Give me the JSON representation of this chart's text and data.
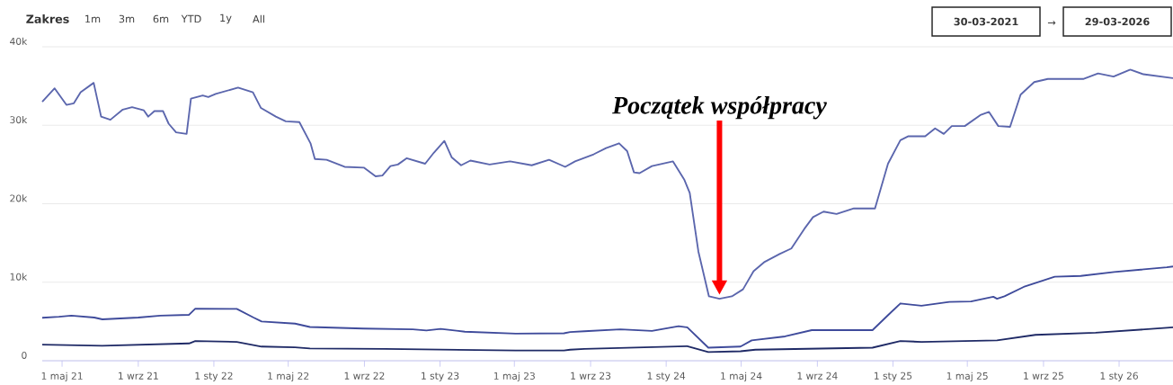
{
  "chart_data": {
    "type": "line",
    "xlim": [
      "2021-03-30",
      "2026-03-29"
    ],
    "ylim": [
      0,
      40000
    ],
    "xticks": [
      {
        "value": "2021-05-01",
        "label": "1 maj 21"
      },
      {
        "value": "2021-09-01",
        "label": "1 wrz 21"
      },
      {
        "value": "2022-01-01",
        "label": "1 sty 22"
      },
      {
        "value": "2022-05-01",
        "label": "1 maj 22"
      },
      {
        "value": "2022-09-01",
        "label": "1 wrz 22"
      },
      {
        "value": "2023-01-01",
        "label": "1 sty 23"
      },
      {
        "value": "2023-05-01",
        "label": "1 maj 23"
      },
      {
        "value": "2023-09-01",
        "label": "1 wrz 23"
      },
      {
        "value": "2024-01-01",
        "label": "1 sty 24"
      },
      {
        "value": "2024-05-01",
        "label": "1 maj 24"
      },
      {
        "value": "2024-09-01",
        "label": "1 wrz 24"
      },
      {
        "value": "2025-01-01",
        "label": "1 sty 25"
      },
      {
        "value": "2025-05-01",
        "label": "1 maj 25"
      },
      {
        "value": "2025-09-01",
        "label": "1 wrz 25"
      },
      {
        "value": "2026-01-01",
        "label": "1 sty 26"
      }
    ],
    "yticks": [
      0,
      {
        "value": 10000,
        "label": "10k"
      },
      {
        "value": 20000,
        "label": "20k"
      },
      {
        "value": 30000,
        "label": "30k"
      },
      {
        "value": 40000,
        "label": "40k"
      }
    ],
    "grid": "y",
    "legend": false,
    "marker": "none",
    "line_style": "solid",
    "series": [
      {
        "color": "#5b66ad",
        "x": [
          "2021-03-30",
          "2021-04-19",
          "2021-05-08",
          "2021-05-20",
          "2021-05-31",
          "2021-06-21",
          "2021-07-03",
          "2021-07-18",
          "2021-08-07",
          "2021-08-22",
          "2021-09-10",
          "2021-09-17",
          "2021-09-27",
          "2021-10-11",
          "2021-10-20",
          "2021-11-01",
          "2021-11-18",
          "2021-11-25",
          "2021-12-14",
          "2021-12-23",
          "2022-01-04",
          "2022-02-09",
          "2022-03-05",
          "2022-03-18",
          "2022-04-11",
          "2022-04-27",
          "2022-05-19",
          "2022-06-06",
          "2022-06-13",
          "2022-07-02",
          "2022-07-31",
          "2022-08-31",
          "2022-09-19",
          "2022-09-30",
          "2022-10-13",
          "2022-10-25",
          "2022-11-08",
          "2022-12-08",
          "2022-12-22",
          "2023-01-08",
          "2023-01-20",
          "2023-02-04",
          "2023-02-19",
          "2023-03-22",
          "2023-04-24",
          "2023-05-29",
          "2023-06-26",
          "2023-07-22",
          "2023-08-07",
          "2023-09-06",
          "2023-09-26",
          "2023-10-17",
          "2023-10-30",
          "2023-11-10",
          "2023-11-19",
          "2023-12-09",
          "2024-01-12",
          "2024-01-30",
          "2024-02-08",
          "2024-02-22",
          "2024-03-10",
          "2024-03-27",
          "2024-04-16",
          "2024-05-04",
          "2024-05-21",
          "2024-06-08",
          "2024-07-02",
          "2024-07-21",
          "2024-08-11",
          "2024-08-25",
          "2024-09-11",
          "2024-10-02",
          "2024-10-30",
          "2024-12-03",
          "2024-12-24",
          "2025-01-13",
          "2025-01-26",
          "2025-02-22",
          "2025-03-10",
          "2025-03-24",
          "2025-04-06",
          "2025-04-27",
          "2025-05-22",
          "2025-06-05",
          "2025-06-20",
          "2025-07-09",
          "2025-07-26",
          "2025-08-17",
          "2025-09-08",
          "2025-11-04",
          "2025-11-28",
          "2025-12-23",
          "2026-01-19",
          "2026-02-09",
          "2026-03-29"
        ],
        "values": [
          33000,
          34700,
          32600,
          32800,
          34200,
          35400,
          31100,
          30700,
          32000,
          32300,
          31900,
          31100,
          31800,
          31800,
          30200,
          29100,
          28900,
          33400,
          33800,
          33600,
          34000,
          34800,
          34200,
          32200,
          31100,
          30500,
          30400,
          27700,
          25700,
          25600,
          24700,
          24600,
          23500,
          23600,
          24800,
          25000,
          25800,
          25100,
          26500,
          28000,
          25900,
          24900,
          25500,
          25000,
          25400,
          24900,
          25600,
          24700,
          25400,
          26300,
          27100,
          27700,
          26700,
          24000,
          23900,
          24800,
          25400,
          23100,
          21400,
          13900,
          8200,
          7900,
          8200,
          9100,
          11400,
          12600,
          13600,
          14300,
          16800,
          18300,
          19000,
          18700,
          19400,
          19400,
          25100,
          28100,
          28600,
          28600,
          29600,
          28900,
          29900,
          29900,
          31300,
          31700,
          29900,
          29800,
          33900,
          35500,
          35900,
          35900,
          36600,
          36200,
          37100,
          36500,
          36000
        ]
      },
      {
        "color": "#3f4b9b",
        "x": [
          "2021-03-30",
          "2021-04-26",
          "2021-05-16",
          "2021-06-22",
          "2021-07-05",
          "2021-09-01",
          "2021-10-07",
          "2021-11-22",
          "2021-12-02",
          "2022-02-07",
          "2022-03-06",
          "2022-03-19",
          "2022-05-12",
          "2022-06-05",
          "2022-08-30",
          "2022-11-18",
          "2022-12-10",
          "2023-01-02",
          "2023-02-10",
          "2023-05-03",
          "2023-07-20",
          "2023-07-30",
          "2023-08-22",
          "2023-10-19",
          "2023-12-09",
          "2024-01-21",
          "2024-02-04",
          "2024-03-09",
          "2024-04-30",
          "2024-05-18",
          "2024-07-11",
          "2024-08-23",
          "2024-11-29",
          "2024-12-28",
          "2025-01-13",
          "2025-02-16",
          "2025-04-02",
          "2025-05-07",
          "2025-06-12",
          "2025-06-18",
          "2025-06-30",
          "2025-07-31",
          "2025-09-19",
          "2025-10-31",
          "2025-12-24",
          "2026-03-19",
          "2026-03-29"
        ],
        "values": [
          5470,
          5600,
          5750,
          5500,
          5270,
          5500,
          5750,
          5850,
          6640,
          6600,
          5500,
          5000,
          4730,
          4300,
          4100,
          4000,
          3850,
          4050,
          3700,
          3460,
          3500,
          3660,
          3750,
          4000,
          3800,
          4400,
          4250,
          1660,
          1800,
          2600,
          3100,
          3900,
          3900,
          6100,
          7300,
          7000,
          7500,
          7550,
          8150,
          7900,
          8200,
          9400,
          10700,
          10800,
          11300,
          11900,
          12000
        ]
      },
      {
        "color": "#1f2a66",
        "x": [
          "2021-03-30",
          "2021-07-05",
          "2021-11-22",
          "2021-12-02",
          "2022-02-07",
          "2022-03-19",
          "2022-05-12",
          "2022-06-05",
          "2022-10-04",
          "2023-05-03",
          "2023-07-20",
          "2023-07-30",
          "2023-08-22",
          "2024-02-04",
          "2024-03-09",
          "2024-04-30",
          "2024-05-24",
          "2024-11-29",
          "2025-01-13",
          "2025-02-16",
          "2025-06-18",
          "2025-08-19",
          "2025-11-24",
          "2026-03-19",
          "2026-03-29"
        ],
        "values": [
          2050,
          1900,
          2200,
          2500,
          2400,
          1800,
          1700,
          1560,
          1500,
          1300,
          1300,
          1400,
          1500,
          1850,
          1100,
          1200,
          1400,
          1660,
          2500,
          2400,
          2600,
          3300,
          3560,
          4200,
          4250
        ]
      }
    ],
    "ref_lines": [
      {
        "axis": "x",
        "value": "2024-03-27",
        "label": "Początek współpracy",
        "color": "#ff0000"
      }
    ],
    "annotations": [
      "Zakres",
      "1m",
      "3m",
      "6m",
      "YTD",
      "1y",
      "All",
      "30-03-2021",
      "→",
      "29-03-2026"
    ]
  }
}
